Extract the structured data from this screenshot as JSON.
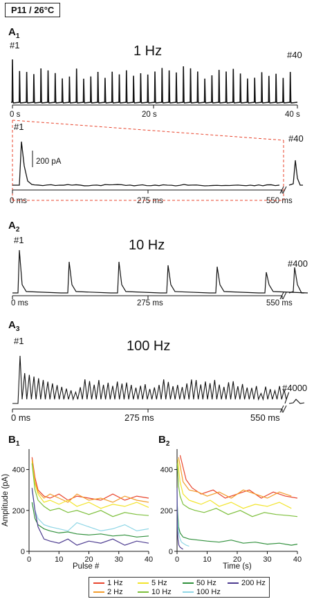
{
  "header": {
    "badge": "P11 / 26°C"
  },
  "panels": {
    "A1": {
      "letter": "A",
      "sub": "1",
      "freq": "1 Hz",
      "first": "#1",
      "last": "#40",
      "ticks": [
        "0 s",
        "20 s",
        "40 s"
      ],
      "zoom_first": "#1",
      "zoom_last": "#40",
      "scale": "200 pA",
      "zoom_ticks": [
        "0 ms",
        "275 ms",
        "550 ms"
      ]
    },
    "A2": {
      "letter": "A",
      "sub": "2",
      "freq": "10 Hz",
      "first": "#1",
      "last": "#400",
      "ticks": [
        "0 ms",
        "275 ms",
        "550 ms"
      ]
    },
    "A3": {
      "letter": "A",
      "sub": "3",
      "freq": "100 Hz",
      "first": "#1",
      "last": "#4000",
      "ticks": [
        "0 ms",
        "275 ms",
        "550 ms"
      ]
    },
    "B1": {
      "letter": "B",
      "sub": "1"
    },
    "B2": {
      "letter": "B",
      "sub": "2"
    }
  },
  "colors": {
    "1 Hz": "#e8432b",
    "2 Hz": "#f39c2b",
    "5 Hz": "#f2e42a",
    "10 Hz": "#7cbf3a",
    "50 Hz": "#2e8f3a",
    "100 Hz": "#8fd6e6",
    "200 Hz": "#4b3a8f",
    "zoom_box": "#e8432b"
  },
  "legend": [
    "1 Hz",
    "2 Hz",
    "5 Hz",
    "10 Hz",
    "50 Hz",
    "100 Hz",
    "200 Hz"
  ],
  "chart_data": [
    {
      "type": "line",
      "panel": "B1",
      "xlabel": "Pulse #",
      "ylabel": "Amplitude (pA)",
      "xlim": [
        0,
        40
      ],
      "ylim": [
        0,
        500
      ],
      "xticks": [
        0,
        10,
        20,
        30,
        40
      ],
      "yticks": [
        0,
        200,
        400
      ],
      "x": [
        1,
        2,
        3,
        5,
        7,
        10,
        13,
        16,
        20,
        24,
        28,
        32,
        36,
        40
      ],
      "series": [
        {
          "name": "1 Hz",
          "values": [
            460,
            360,
            300,
            270,
            260,
            280,
            250,
            270,
            260,
            250,
            280,
            250,
            270,
            260
          ]
        },
        {
          "name": "2 Hz",
          "values": [
            450,
            340,
            290,
            260,
            280,
            260,
            240,
            280,
            250,
            260,
            240,
            270,
            250,
            240
          ]
        },
        {
          "name": "5 Hz",
          "values": [
            440,
            330,
            280,
            240,
            250,
            230,
            250,
            220,
            240,
            210,
            230,
            220,
            240,
            215
          ]
        },
        {
          "name": "10 Hz",
          "values": [
            430,
            300,
            250,
            220,
            200,
            210,
            190,
            200,
            180,
            200,
            170,
            190,
            180,
            175
          ]
        },
        {
          "name": "50 Hz",
          "values": [
            240,
            160,
            130,
            110,
            100,
            90,
            95,
            85,
            80,
            85,
            75,
            80,
            70,
            75
          ]
        },
        {
          "name": "100 Hz",
          "values": [
            300,
            200,
            160,
            130,
            120,
            110,
            100,
            140,
            120,
            100,
            110,
            130,
            100,
            110
          ]
        },
        {
          "name": "200 Hz",
          "values": [
            310,
            200,
            120,
            60,
            50,
            40,
            60,
            30,
            50,
            40,
            60,
            30,
            50,
            40
          ]
        }
      ]
    },
    {
      "type": "line",
      "panel": "B2",
      "xlabel": "Time (s)",
      "ylabel": "",
      "xlim": [
        0,
        40
      ],
      "ylim": [
        0,
        500
      ],
      "xticks": [
        0,
        10,
        20,
        30,
        40
      ],
      "yticks": [
        0,
        200,
        400
      ],
      "series": [
        {
          "name": "1 Hz",
          "x": [
            1,
            3,
            5,
            8,
            12,
            16,
            20,
            24,
            28,
            32,
            36,
            40
          ],
          "values": [
            470,
            350,
            310,
            280,
            300,
            260,
            280,
            300,
            260,
            290,
            270,
            260
          ]
        },
        {
          "name": "2 Hz",
          "x": [
            0.5,
            2,
            4,
            7,
            10,
            14,
            18,
            22,
            26,
            30,
            34,
            38
          ],
          "values": [
            460,
            340,
            300,
            290,
            270,
            290,
            260,
            300,
            280,
            260,
            290,
            270
          ]
        },
        {
          "name": "5 Hz",
          "x": [
            0.2,
            1,
            2,
            4,
            6,
            8,
            11,
            14,
            18,
            22,
            26,
            30,
            34,
            38
          ],
          "values": [
            450,
            340,
            280,
            250,
            240,
            230,
            250,
            220,
            240,
            210,
            230,
            220,
            240,
            210
          ]
        },
        {
          "name": "10 Hz",
          "x": [
            0.1,
            0.5,
            1,
            2,
            4,
            6,
            9,
            13,
            17,
            21,
            25,
            29,
            33,
            37,
            40
          ],
          "values": [
            430,
            320,
            270,
            230,
            210,
            200,
            190,
            210,
            180,
            200,
            170,
            190,
            180,
            175,
            170
          ]
        },
        {
          "name": "50 Hz",
          "x": [
            0.02,
            0.5,
            1,
            2,
            4,
            7,
            10,
            14,
            18,
            22,
            26,
            30,
            34,
            38,
            40
          ],
          "values": [
            240,
            120,
            90,
            70,
            60,
            55,
            50,
            45,
            55,
            40,
            45,
            35,
            40,
            30,
            35
          ]
        },
        {
          "name": "100 Hz",
          "x": [
            0.01,
            0.2,
            0.5,
            1,
            1.5,
            2,
            3,
            4
          ],
          "values": [
            300,
            150,
            90,
            60,
            45,
            40,
            30,
            25
          ]
        },
        {
          "name": "200 Hz",
          "x": [
            0.005,
            0.1,
            0.3,
            0.6,
            1,
            1.5,
            2
          ],
          "values": [
            310,
            120,
            60,
            30,
            20,
            15,
            10
          ]
        }
      ]
    }
  ]
}
